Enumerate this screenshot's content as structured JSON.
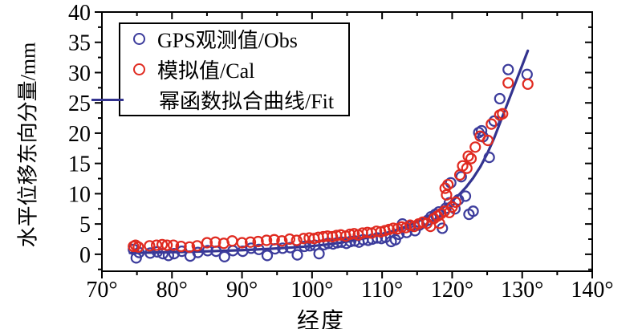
{
  "figure": {
    "background": "#ffffff",
    "frame_color": "#000000"
  },
  "chart_data": {
    "type": "scatter",
    "title": "",
    "xlabel": "经度",
    "ylabel": "水平位移东向分量/mm",
    "xlim": [
      70,
      140
    ],
    "ylim": [
      -2.8,
      40
    ],
    "grid": false,
    "legend_position": "upper-left-inside",
    "x_ticks": {
      "major": [
        70,
        80,
        90,
        100,
        110,
        120,
        130,
        140
      ],
      "labels": [
        "70°",
        "80°",
        "90°",
        "100°",
        "110°",
        "120°",
        "130°",
        "140°"
      ],
      "minor_step": 5
    },
    "y_ticks": {
      "major": [
        0,
        5,
        10,
        15,
        20,
        25,
        30,
        35,
        40
      ],
      "labels": [
        "0",
        "5",
        "10",
        "15",
        "20",
        "25",
        "30",
        "35",
        "40"
      ],
      "minor_step": 2.5
    },
    "series": [
      {
        "name": "GPS观测值/Obs",
        "kind": "scatter",
        "marker": "open-circle",
        "color": "#3c3c9c",
        "points": [
          [
            74.5,
            0.8
          ],
          [
            74.9,
            -0.6
          ],
          [
            75.3,
            0.3
          ],
          [
            76.9,
            0.2
          ],
          [
            77.9,
            0.4
          ],
          [
            78.7,
            0.1
          ],
          [
            79.5,
            -0.2
          ],
          [
            80.3,
            0.1
          ],
          [
            81.4,
            0.5
          ],
          [
            82.6,
            -0.3
          ],
          [
            83.7,
            0.3
          ],
          [
            85.1,
            0.6
          ],
          [
            86.3,
            0.5
          ],
          [
            87.5,
            -0.4
          ],
          [
            88.7,
            0.6
          ],
          [
            90.1,
            0.5
          ],
          [
            91.3,
            1.0
          ],
          [
            92.4,
            0.8
          ],
          [
            93.6,
            -0.2
          ],
          [
            94.7,
            0.9
          ],
          [
            95.8,
            1.0
          ],
          [
            96.9,
            1.1
          ],
          [
            97.9,
            -0.1
          ],
          [
            98.9,
            1.3
          ],
          [
            99.7,
            1.4
          ],
          [
            100.4,
            1.5
          ],
          [
            101.0,
            0.1
          ],
          [
            101.7,
            1.6
          ],
          [
            102.3,
            1.8
          ],
          [
            103.0,
            1.7
          ],
          [
            103.6,
            1.9
          ],
          [
            104.2,
            2.0
          ],
          [
            104.9,
            1.8
          ],
          [
            105.5,
            2.1
          ],
          [
            106.1,
            2.2
          ],
          [
            106.7,
            2.0
          ],
          [
            107.3,
            2.4
          ],
          [
            108.0,
            2.3
          ],
          [
            108.6,
            2.5
          ],
          [
            109.3,
            2.7
          ],
          [
            109.9,
            2.6
          ],
          [
            110.5,
            2.8
          ],
          [
            111.3,
            2.1
          ],
          [
            111.9,
            2.4
          ],
          [
            112.4,
            3.3
          ],
          [
            112.9,
            5.0
          ],
          [
            113.5,
            3.6
          ],
          [
            114.1,
            4.6
          ],
          [
            114.7,
            3.9
          ],
          [
            115.3,
            4.8
          ],
          [
            115.9,
            5.2
          ],
          [
            116.5,
            5.6
          ],
          [
            117.0,
            6.2
          ],
          [
            117.6,
            6.6
          ],
          [
            118.1,
            7.0
          ],
          [
            118.6,
            4.3
          ],
          [
            119.1,
            7.6
          ],
          [
            119.6,
            8.5
          ],
          [
            119.8,
            11.8
          ],
          [
            120.4,
            7.5
          ],
          [
            120.9,
            9.0
          ],
          [
            121.3,
            12.8
          ],
          [
            121.9,
            9.6
          ],
          [
            122.4,
            6.6
          ],
          [
            123.0,
            7.1
          ],
          [
            123.8,
            20.1
          ],
          [
            124.2,
            20.4
          ],
          [
            124.4,
            19.4
          ],
          [
            125.3,
            16.0
          ],
          [
            126.0,
            22.0
          ],
          [
            126.8,
            25.7
          ],
          [
            128.0,
            30.5
          ],
          [
            130.7,
            29.7
          ]
        ]
      },
      {
        "name": "模拟值/Cal",
        "kind": "scatter",
        "marker": "open-circle",
        "color": "#e02a20",
        "points": [
          [
            74.5,
            1.3
          ],
          [
            74.8,
            1.5
          ],
          [
            75.2,
            1.2
          ],
          [
            76.8,
            1.4
          ],
          [
            77.8,
            1.5
          ],
          [
            78.6,
            1.6
          ],
          [
            79.3,
            1.5
          ],
          [
            80.2,
            1.5
          ],
          [
            81.3,
            1.3
          ],
          [
            82.5,
            1.2
          ],
          [
            83.6,
            1.4
          ],
          [
            85.0,
            1.9
          ],
          [
            86.2,
            2.0
          ],
          [
            87.4,
            1.8
          ],
          [
            88.6,
            2.2
          ],
          [
            90.0,
            1.9
          ],
          [
            91.2,
            2.0
          ],
          [
            92.3,
            2.1
          ],
          [
            93.5,
            2.3
          ],
          [
            94.6,
            2.4
          ],
          [
            95.7,
            2.2
          ],
          [
            96.8,
            2.5
          ],
          [
            97.8,
            2.3
          ],
          [
            98.8,
            2.6
          ],
          [
            99.6,
            2.7
          ],
          [
            100.3,
            2.6
          ],
          [
            100.9,
            2.8
          ],
          [
            101.6,
            2.9
          ],
          [
            102.2,
            3.0
          ],
          [
            102.9,
            2.9
          ],
          [
            103.5,
            3.1
          ],
          [
            104.1,
            3.2
          ],
          [
            104.8,
            3.0
          ],
          [
            105.4,
            3.3
          ],
          [
            106.0,
            3.4
          ],
          [
            106.6,
            3.2
          ],
          [
            107.2,
            3.5
          ],
          [
            107.9,
            3.6
          ],
          [
            108.5,
            3.5
          ],
          [
            109.2,
            3.8
          ],
          [
            109.8,
            3.7
          ],
          [
            110.4,
            3.9
          ],
          [
            111.0,
            4.1
          ],
          [
            111.6,
            4.3
          ],
          [
            112.2,
            4.2
          ],
          [
            112.8,
            4.5
          ],
          [
            113.4,
            4.4
          ],
          [
            114.0,
            4.8
          ],
          [
            114.6,
            4.6
          ],
          [
            115.2,
            5.0
          ],
          [
            115.8,
            5.3
          ],
          [
            116.4,
            5.1
          ],
          [
            116.9,
            4.6
          ],
          [
            117.4,
            5.9
          ],
          [
            117.9,
            6.3
          ],
          [
            118.2,
            5.1
          ],
          [
            118.4,
            6.7
          ],
          [
            118.9,
            7.1
          ],
          [
            119.0,
            10.9
          ],
          [
            119.2,
            9.8
          ],
          [
            119.4,
            11.5
          ],
          [
            119.6,
            6.9
          ],
          [
            120.0,
            7.8
          ],
          [
            120.5,
            8.6
          ],
          [
            121.1,
            13.1
          ],
          [
            121.5,
            14.6
          ],
          [
            122.1,
            14.2
          ],
          [
            122.3,
            16.2
          ],
          [
            122.7,
            15.8
          ],
          [
            123.3,
            17.7
          ],
          [
            124.0,
            19.5
          ],
          [
            125.1,
            18.8
          ],
          [
            125.6,
            21.5
          ],
          [
            126.8,
            23.0
          ],
          [
            127.2,
            23.2
          ],
          [
            128.0,
            28.3
          ],
          [
            130.8,
            28.1
          ]
        ]
      },
      {
        "name": "幂函数拟合曲线/Fit",
        "kind": "line",
        "color": "#33338f",
        "points": [
          [
            74,
            0.22
          ],
          [
            78,
            0.3
          ],
          [
            82,
            0.4
          ],
          [
            86,
            0.52
          ],
          [
            90,
            0.68
          ],
          [
            94,
            0.9
          ],
          [
            98,
            1.18
          ],
          [
            100,
            1.35
          ],
          [
            102,
            1.6
          ],
          [
            104,
            1.9
          ],
          [
            106,
            2.3
          ],
          [
            108,
            2.75
          ],
          [
            110,
            3.3
          ],
          [
            112,
            4.0
          ],
          [
            114,
            4.85
          ],
          [
            116,
            5.9
          ],
          [
            118,
            7.2
          ],
          [
            119,
            7.95
          ],
          [
            120,
            8.8
          ],
          [
            121,
            9.85
          ],
          [
            122,
            11.1
          ],
          [
            123,
            12.6
          ],
          [
            124,
            14.4
          ],
          [
            125,
            16.6
          ],
          [
            126,
            19.2
          ],
          [
            127,
            22.2
          ],
          [
            128,
            25.2
          ],
          [
            129,
            28.2
          ],
          [
            130,
            31.2
          ],
          [
            130.8,
            33.6
          ]
        ]
      }
    ]
  }
}
